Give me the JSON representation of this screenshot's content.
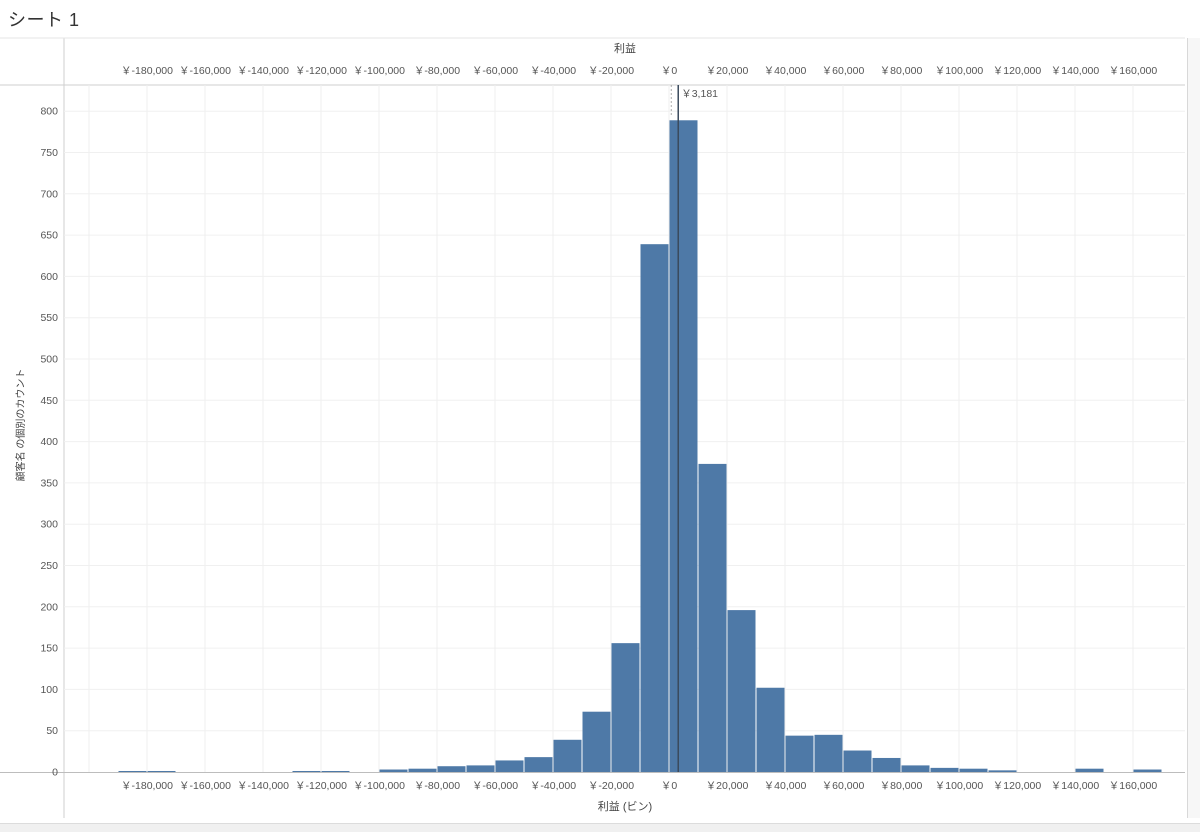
{
  "sheet": {
    "title": "シート 1"
  },
  "chart_data": {
    "type": "bar",
    "top_axis": {
      "title": "利益",
      "tick_labels": [
        "￥-180,000",
        "￥-160,000",
        "￥-140,000",
        "￥-120,000",
        "￥-100,000",
        "￥-80,000",
        "￥-60,000",
        "￥-40,000",
        "￥-20,000",
        "￥0",
        "￥20,000",
        "￥40,000",
        "￥60,000",
        "￥80,000",
        "￥100,000",
        "￥120,000",
        "￥140,000",
        "￥160,000"
      ]
    },
    "xlabel": "利益 (ビン)",
    "ylabel": "顧客名 の個別のカウント",
    "x_ticks": [
      -180000,
      -160000,
      -140000,
      -120000,
      -100000,
      -80000,
      -60000,
      -40000,
      -20000,
      0,
      20000,
      40000,
      60000,
      80000,
      100000,
      120000,
      140000,
      160000
    ],
    "x_tick_labels": [
      "￥-180,000",
      "￥-160,000",
      "￥-140,000",
      "￥-120,000",
      "￥-100,000",
      "￥-80,000",
      "￥-60,000",
      "￥-40,000",
      "￥-20,000",
      "￥0",
      "￥20,000",
      "￥40,000",
      "￥60,000",
      "￥80,000",
      "￥100,000",
      "￥120,000",
      "￥140,000",
      "￥160,000"
    ],
    "xlim": [
      -200000,
      170000
    ],
    "ylim": [
      0,
      820
    ],
    "y_ticks": [
      0,
      50,
      100,
      150,
      200,
      250,
      300,
      350,
      400,
      450,
      500,
      550,
      600,
      650,
      700,
      750,
      800
    ],
    "y_tick_labels": [
      "0",
      "50",
      "100",
      "150",
      "200",
      "250",
      "300",
      "350",
      "400",
      "450",
      "500",
      "550",
      "600",
      "650",
      "700",
      "750",
      "800"
    ],
    "bin_width": 10000,
    "bins": [
      {
        "start": -190000,
        "value": 1
      },
      {
        "start": -180000,
        "value": 1
      },
      {
        "start": -130000,
        "value": 1
      },
      {
        "start": -120000,
        "value": 1
      },
      {
        "start": -100000,
        "value": 3
      },
      {
        "start": -90000,
        "value": 4
      },
      {
        "start": -80000,
        "value": 7
      },
      {
        "start": -70000,
        "value": 8
      },
      {
        "start": -60000,
        "value": 14
      },
      {
        "start": -50000,
        "value": 18
      },
      {
        "start": -40000,
        "value": 39
      },
      {
        "start": -30000,
        "value": 73
      },
      {
        "start": -20000,
        "value": 156
      },
      {
        "start": -10000,
        "value": 639
      },
      {
        "start": 0,
        "value": 789
      },
      {
        "start": 10000,
        "value": 373
      },
      {
        "start": 20000,
        "value": 196
      },
      {
        "start": 30000,
        "value": 102
      },
      {
        "start": 40000,
        "value": 44
      },
      {
        "start": 50000,
        "value": 45
      },
      {
        "start": 60000,
        "value": 26
      },
      {
        "start": 70000,
        "value": 17
      },
      {
        "start": 80000,
        "value": 8
      },
      {
        "start": 90000,
        "value": 5
      },
      {
        "start": 100000,
        "value": 4
      },
      {
        "start": 110000,
        "value": 2
      },
      {
        "start": 140000,
        "value": 4
      },
      {
        "start": 160000,
        "value": 3
      }
    ],
    "reference_line": {
      "x": 3181,
      "label": "￥3,181"
    },
    "bar_color": "#4e79a7",
    "grid": true
  }
}
